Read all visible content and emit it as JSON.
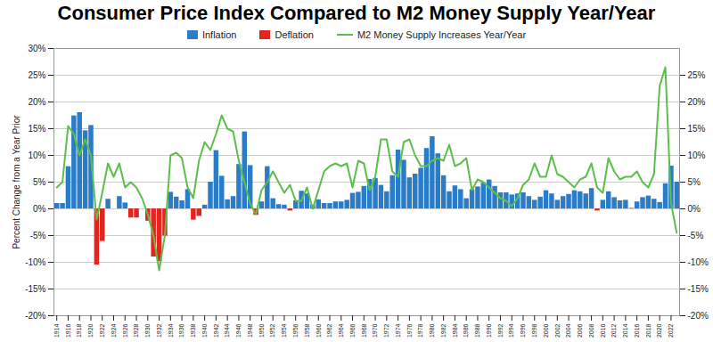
{
  "chart_data": {
    "type": "bar",
    "title": "Consumer Price Index Compared to M2 Money Supply Year/Year",
    "ylabel": "Percent Change from a Year Prior",
    "legend": "top",
    "grid": true,
    "x": [
      1914,
      1915,
      1916,
      1917,
      1918,
      1919,
      1920,
      1921,
      1922,
      1923,
      1924,
      1925,
      1926,
      1927,
      1928,
      1929,
      1930,
      1931,
      1932,
      1933,
      1934,
      1935,
      1936,
      1937,
      1938,
      1939,
      1940,
      1941,
      1942,
      1943,
      1944,
      1945,
      1946,
      1947,
      1948,
      1949,
      1950,
      1951,
      1952,
      1953,
      1954,
      1955,
      1956,
      1957,
      1958,
      1959,
      1960,
      1961,
      1962,
      1963,
      1964,
      1965,
      1966,
      1967,
      1968,
      1969,
      1970,
      1971,
      1972,
      1973,
      1974,
      1975,
      1976,
      1977,
      1978,
      1979,
      1980,
      1981,
      1982,
      1983,
      1984,
      1985,
      1986,
      1987,
      1988,
      1989,
      1990,
      1991,
      1992,
      1993,
      1994,
      1995,
      1996,
      1997,
      1998,
      1999,
      2000,
      2001,
      2002,
      2003,
      2004,
      2005,
      2006,
      2007,
      2008,
      2009,
      2010,
      2011,
      2012,
      2013,
      2014,
      2015,
      2016,
      2017,
      2018,
      2019,
      2020,
      2021,
      2022,
      2023
    ],
    "xlim": [
      1913.5,
      2023.5
    ],
    "xticks": [
      1914,
      1916,
      1918,
      1920,
      1922,
      1924,
      1926,
      1928,
      1930,
      1932,
      1934,
      1936,
      1938,
      1940,
      1942,
      1944,
      1946,
      1948,
      1950,
      1952,
      1954,
      1956,
      1958,
      1960,
      1962,
      1964,
      1966,
      1968,
      1970,
      1972,
      1974,
      1976,
      1978,
      1980,
      1982,
      1984,
      1986,
      1988,
      1990,
      1992,
      1994,
      1996,
      1998,
      2000,
      2002,
      2004,
      2006,
      2008,
      2010,
      2012,
      2014,
      2016,
      2018,
      2020,
      2022
    ],
    "ylim": [
      -20,
      30
    ],
    "yticks": [
      {
        "value": -20,
        "label": "-20%"
      },
      {
        "value": -15,
        "label": "-15%"
      },
      {
        "value": -10,
        "label": "-10%"
      },
      {
        "value": -5,
        "label": "-5%"
      },
      {
        "value": 0,
        "label": "0%"
      },
      {
        "value": 5,
        "label": "5%"
      },
      {
        "value": 10,
        "label": "10%"
      },
      {
        "value": 15,
        "label": "15%"
      },
      {
        "value": 20,
        "label": "20%"
      },
      {
        "value": 25,
        "label": "25%"
      },
      {
        "value": 30,
        "label": "30%"
      }
    ],
    "y2lim": [
      -20,
      30
    ],
    "y2ticks": [
      {
        "value": -20,
        "label": "-20%"
      },
      {
        "value": -15,
        "label": "-15%"
      },
      {
        "value": -10,
        "label": "-10%"
      },
      {
        "value": -5,
        "label": "-5%"
      },
      {
        "value": 0,
        "label": "0%"
      },
      {
        "value": 5,
        "label": "5%"
      },
      {
        "value": 10,
        "label": "10%"
      },
      {
        "value": 15,
        "label": "15%"
      },
      {
        "value": 20,
        "label": "20%"
      },
      {
        "value": 25,
        "label": "25%"
      }
    ],
    "series": [
      {
        "name": "Inflation",
        "type": "bar",
        "color": "#2a7cc7",
        "values": [
          1.0,
          1.0,
          7.9,
          17.4,
          18.0,
          14.6,
          15.6,
          null,
          null,
          1.8,
          0.0,
          2.3,
          1.1,
          null,
          null,
          0.0,
          null,
          null,
          null,
          null,
          3.1,
          2.2,
          1.5,
          3.6,
          null,
          null,
          0.7,
          5.0,
          10.9,
          6.1,
          1.7,
          2.3,
          8.3,
          14.4,
          8.1,
          null,
          1.3,
          7.9,
          1.9,
          0.8,
          0.7,
          null,
          1.5,
          3.3,
          2.8,
          0.7,
          1.7,
          1.0,
          1.0,
          1.3,
          1.3,
          1.6,
          2.9,
          3.1,
          4.2,
          5.5,
          5.7,
          4.4,
          3.2,
          6.2,
          11.0,
          9.1,
          5.8,
          6.5,
          7.6,
          11.3,
          13.5,
          10.3,
          6.2,
          3.2,
          4.3,
          3.6,
          1.9,
          3.6,
          4.1,
          4.8,
          5.4,
          4.2,
          3.0,
          3.0,
          2.6,
          2.8,
          3.0,
          2.3,
          1.6,
          2.2,
          3.4,
          2.8,
          1.6,
          2.3,
          2.7,
          3.4,
          3.2,
          2.8,
          3.8,
          null,
          1.6,
          3.2,
          2.1,
          1.5,
          1.6,
          0.1,
          1.3,
          2.1,
          2.4,
          1.8,
          1.2,
          4.7,
          8.0,
          5.0
        ]
      },
      {
        "name": "Deflation",
        "type": "bar",
        "color": "#e0261e",
        "values": [
          null,
          null,
          null,
          null,
          null,
          null,
          null,
          -10.5,
          -6.1,
          null,
          null,
          null,
          null,
          -1.7,
          -1.7,
          null,
          -2.3,
          -9.0,
          -9.9,
          -5.1,
          null,
          null,
          null,
          null,
          -2.1,
          -1.4,
          null,
          null,
          null,
          null,
          null,
          null,
          null,
          null,
          null,
          -1.2,
          null,
          null,
          null,
          null,
          null,
          -0.4,
          null,
          null,
          null,
          null,
          null,
          null,
          null,
          null,
          null,
          null,
          null,
          null,
          null,
          null,
          null,
          null,
          null,
          null,
          null,
          null,
          null,
          null,
          null,
          null,
          null,
          null,
          null,
          null,
          null,
          null,
          null,
          null,
          null,
          null,
          null,
          null,
          null,
          null,
          null,
          null,
          null,
          null,
          null,
          null,
          null,
          null,
          null,
          null,
          null,
          null,
          null,
          null,
          null,
          -0.4,
          null,
          null,
          null,
          null,
          null,
          null,
          null,
          null,
          null,
          null,
          null,
          null,
          null,
          null
        ]
      },
      {
        "name": "M2 Money Supply Increases Year/Year",
        "type": "line",
        "color": "#5cbf49",
        "values": [
          4,
          5,
          15.5,
          14,
          10,
          13,
          10,
          -2,
          3,
          8.5,
          6,
          8.5,
          4,
          5,
          4,
          2,
          -1,
          -5,
          -11.5,
          -5,
          10,
          10.5,
          9.5,
          4,
          2,
          9,
          12.5,
          11,
          14,
          17.5,
          15,
          14.5,
          9,
          5,
          1,
          -1,
          3.5,
          5,
          7,
          5,
          3,
          4.5,
          1.5,
          1.5,
          4,
          0,
          3.5,
          7,
          8,
          8.5,
          8,
          8.5,
          4,
          9,
          8.5,
          3.5,
          6,
          13,
          13,
          7,
          6,
          12.5,
          13,
          10,
          8,
          8,
          9,
          9.5,
          9,
          12,
          8,
          8.5,
          9.5,
          3.5,
          5.5,
          5,
          4,
          3,
          2,
          1.5,
          0.5,
          2,
          4.5,
          5.5,
          8.5,
          6,
          6,
          10,
          6.5,
          6,
          5,
          4,
          5.5,
          6,
          8.5,
          4,
          3,
          9.5,
          7,
          5.5,
          6,
          6,
          7,
          5,
          4,
          6.5,
          23,
          26.5,
          1,
          -4.5
        ]
      }
    ]
  }
}
